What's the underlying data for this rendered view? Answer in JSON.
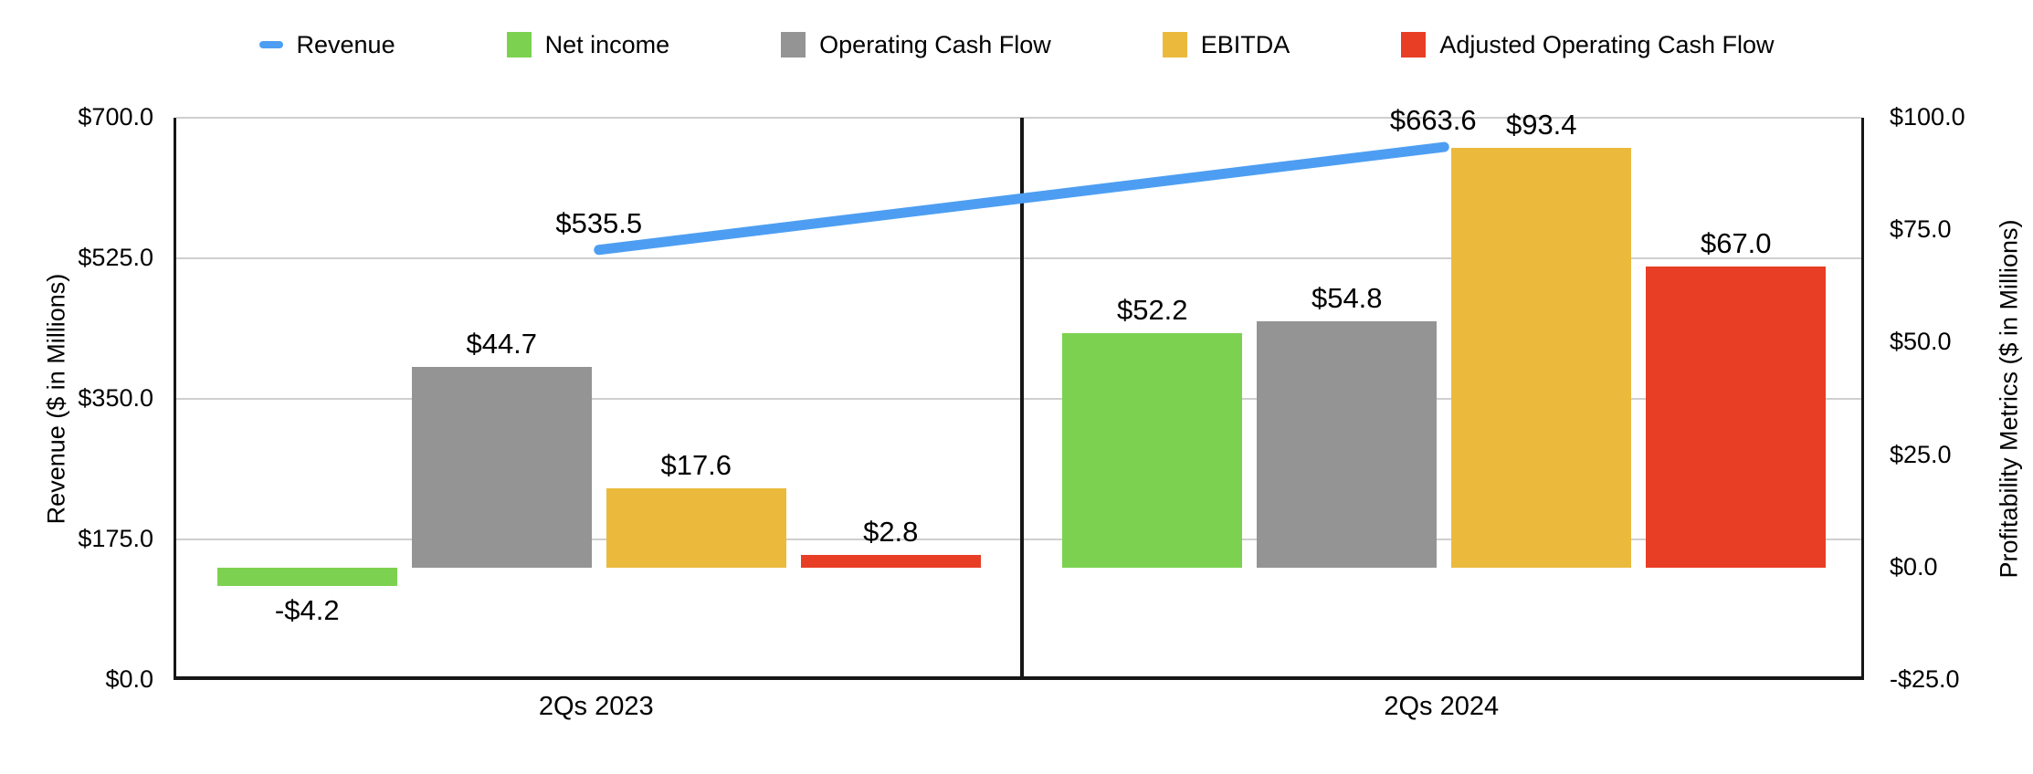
{
  "legend": {
    "items": [
      {
        "label": "Revenue",
        "marker": "line",
        "color": "#4d9ef2"
      },
      {
        "label": "Net income",
        "marker": "square",
        "color": "#7cd250"
      },
      {
        "label": "Operating Cash Flow",
        "marker": "square",
        "color": "#949494"
      },
      {
        "label": "EBITDA",
        "marker": "square",
        "color": "#ebba3d"
      },
      {
        "label": "Adjusted Operating Cash Flow",
        "marker": "square",
        "color": "#e73e25"
      }
    ]
  },
  "chart_data": {
    "type": "combo-bar-line",
    "categories": [
      "2Qs 2023",
      "2Qs 2024"
    ],
    "bar_series": [
      {
        "name": "Net income",
        "color": "#7cd250",
        "axis": "right",
        "values": [
          -4.2,
          52.2
        ],
        "labels": [
          "-$4.2",
          "$52.2"
        ]
      },
      {
        "name": "Operating Cash Flow",
        "color": "#949494",
        "axis": "right",
        "values": [
          44.7,
          54.8
        ],
        "labels": [
          "$44.7",
          "$54.8"
        ]
      },
      {
        "name": "EBITDA",
        "color": "#ebba3d",
        "axis": "right",
        "values": [
          17.6,
          93.4
        ],
        "labels": [
          "$17.6",
          "$93.4"
        ]
      },
      {
        "name": "Adjusted Operating Cash Flow",
        "color": "#e73e25",
        "axis": "right",
        "values": [
          2.8,
          67.0
        ],
        "labels": [
          "$2.8",
          "$67.0"
        ]
      }
    ],
    "line_series": {
      "name": "Revenue",
      "color": "#4d9ef2",
      "axis": "left",
      "values": [
        535.5,
        663.6
      ],
      "labels": [
        "$535.5",
        "$663.6"
      ]
    },
    "left_axis": {
      "title": "Revenue ($ in Millions)",
      "min": 0,
      "max": 700,
      "tick_values": [
        700,
        525,
        350,
        175,
        0
      ],
      "tick_labels": [
        "$700.0",
        "$525.0",
        "$350.0",
        "$175.0",
        "$0.0"
      ]
    },
    "right_axis": {
      "title": "Profitability Metrics ($ in Millions)",
      "min": -25,
      "max": 100,
      "tick_values": [
        100,
        75,
        50,
        25,
        0,
        -25
      ],
      "tick_labels": [
        "$100.0",
        "$75.0",
        "$50.0",
        "$25.0",
        "$0.0",
        "-$25.0"
      ]
    },
    "grid": true,
    "legend_position": "top",
    "group_divider": true
  }
}
